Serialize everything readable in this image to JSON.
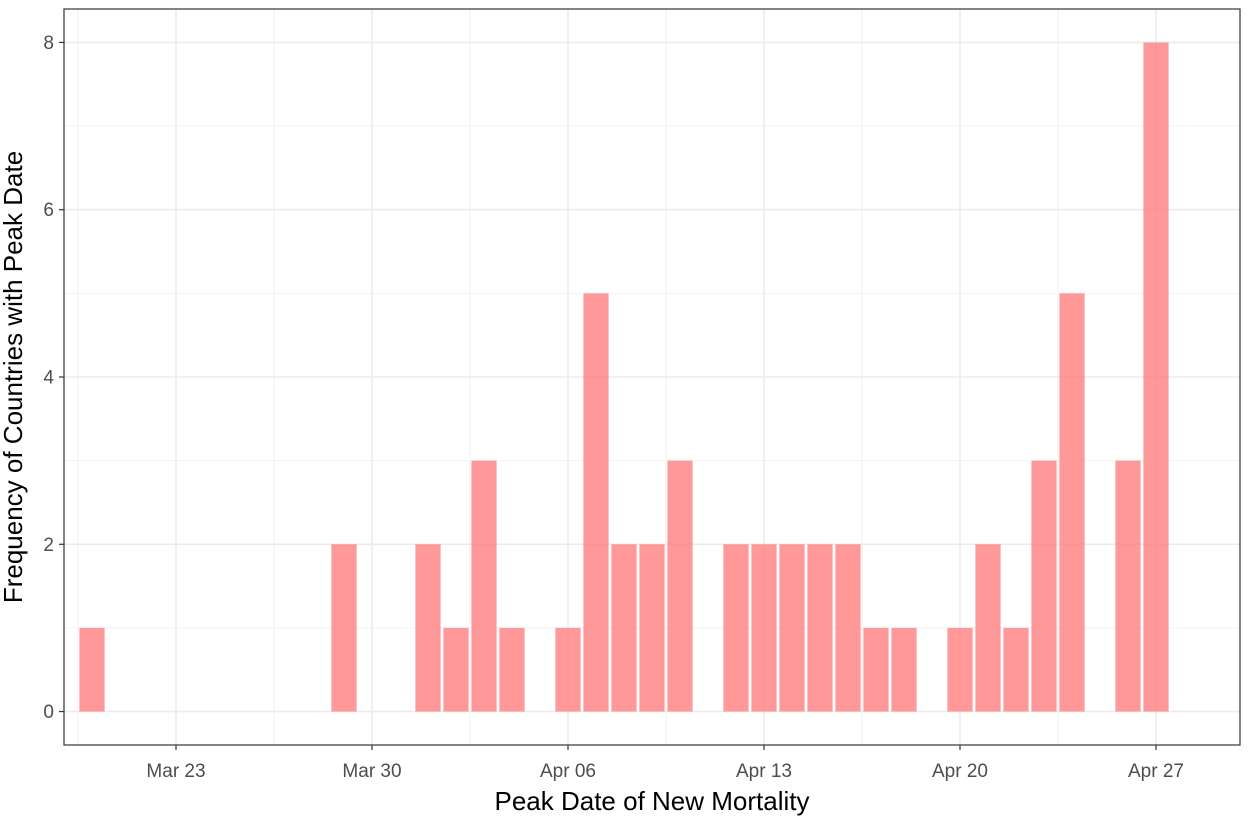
{
  "chart_data": {
    "type": "bar",
    "xlabel": "Peak Date of New Mortality",
    "ylabel": "Frequency of Countries with Peak Date",
    "x_tick_labels": [
      "Mar 23",
      "Mar 30",
      "Apr 06",
      "Apr 13",
      "Apr 20",
      "Apr 27"
    ],
    "x_tick_dates": [
      "2020-03-23",
      "2020-03-30",
      "2020-04-06",
      "2020-04-13",
      "2020-04-20",
      "2020-04-27"
    ],
    "y_ticks": [
      0,
      2,
      4,
      6,
      8
    ],
    "ylim": [
      -0.4,
      8.4
    ],
    "xlim": [
      "2020-03-19",
      "2020-04-30"
    ],
    "grid": true,
    "bar_color": "#ff8080",
    "bar_opacity": 0.8,
    "x": [
      "2020-03-20",
      "2020-03-29",
      "2020-04-01",
      "2020-04-02",
      "2020-04-03",
      "2020-04-04",
      "2020-04-06",
      "2020-04-07",
      "2020-04-08",
      "2020-04-09",
      "2020-04-10",
      "2020-04-12",
      "2020-04-13",
      "2020-04-14",
      "2020-04-15",
      "2020-04-16",
      "2020-04-17",
      "2020-04-18",
      "2020-04-20",
      "2020-04-21",
      "2020-04-22",
      "2020-04-23",
      "2020-04-24",
      "2020-04-26",
      "2020-04-27"
    ],
    "values": [
      1,
      2,
      2,
      1,
      3,
      1,
      1,
      5,
      2,
      2,
      3,
      2,
      2,
      2,
      2,
      2,
      1,
      1,
      1,
      2,
      1,
      3,
      5,
      3,
      8
    ]
  }
}
